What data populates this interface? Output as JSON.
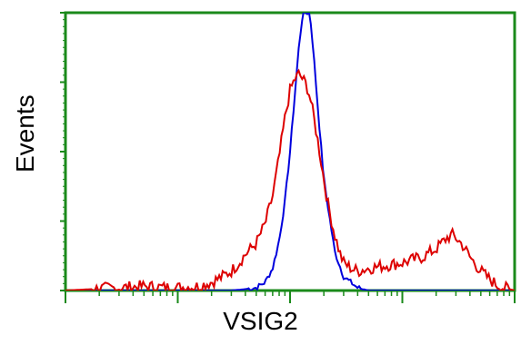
{
  "chart_data": {
    "type": "line",
    "title": "",
    "xlabel": "VSIG2",
    "ylabel": "Events",
    "x_scale": "log",
    "xlim": [
      1,
      10000
    ],
    "ylim": [
      0,
      100
    ],
    "grid": false,
    "legend": "none",
    "axis_color": "#1a8a1a",
    "series": [
      {
        "color": "#0000dd",
        "x": [
          1,
          30,
          40,
          50,
          60,
          70,
          80,
          90,
          100,
          110,
          120,
          130,
          140,
          150,
          160,
          180,
          200,
          250,
          300,
          400,
          500,
          1000,
          10000
        ],
        "values": [
          0,
          0,
          0.5,
          1,
          3,
          8,
          18,
          32,
          50,
          70,
          88,
          100,
          100,
          100,
          88,
          62,
          40,
          14,
          5,
          1,
          0,
          0,
          0
        ]
      },
      {
        "color": "#dd0000",
        "x": [
          1,
          3,
          5,
          8,
          10,
          15,
          20,
          25,
          30,
          35,
          40,
          50,
          60,
          70,
          80,
          90,
          100,
          110,
          120,
          130,
          140,
          150,
          160,
          180,
          200,
          220,
          250,
          280,
          300,
          350,
          400,
          500,
          700,
          1000,
          1500,
          2000,
          2500,
          2800,
          3000,
          3500,
          4000,
          5000,
          6000,
          7000,
          8000,
          10000
        ],
        "values": [
          0,
          1,
          1.5,
          1,
          1,
          1.5,
          3,
          5,
          7,
          10,
          13,
          17,
          24,
          34,
          48,
          62,
          72,
          76,
          78,
          76,
          74,
          70,
          64,
          52,
          40,
          30,
          20,
          13,
          10,
          8,
          7,
          8,
          9,
          10,
          12,
          15,
          19,
          20,
          19,
          16,
          12,
          7,
          4,
          2,
          1,
          0
        ]
      }
    ]
  }
}
